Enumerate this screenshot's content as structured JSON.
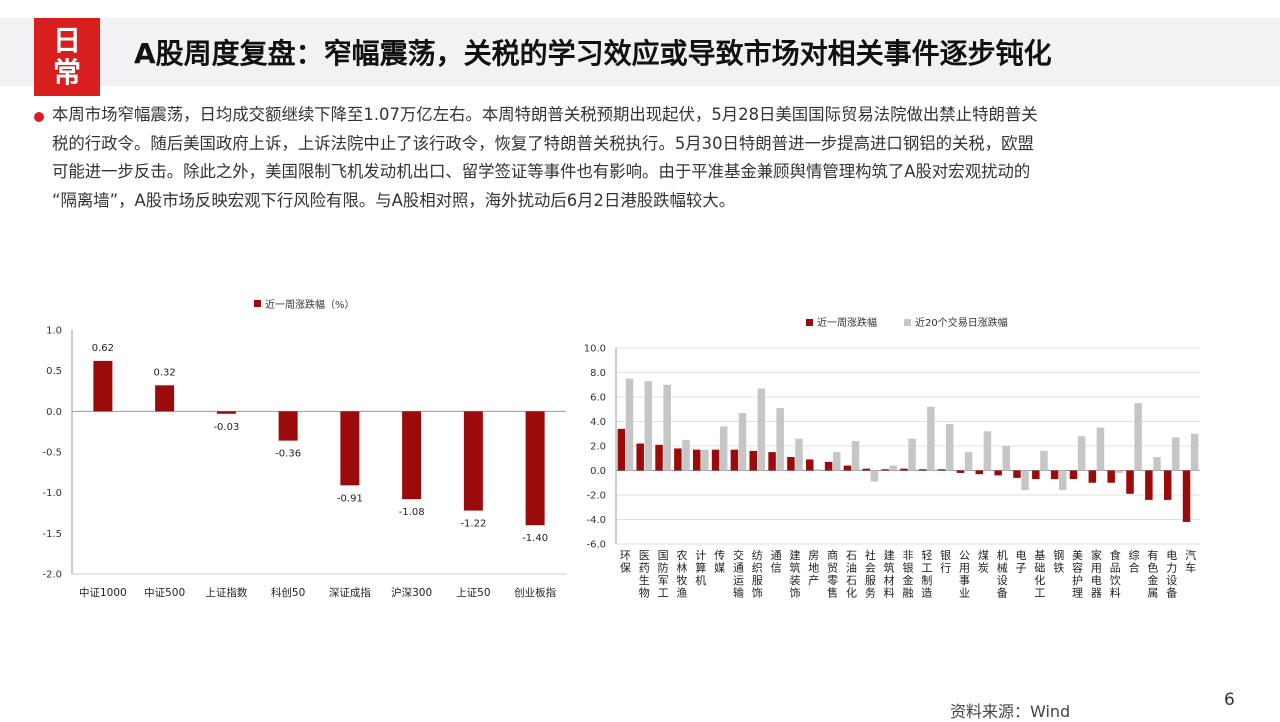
{
  "header": {
    "badge_chars": [
      "日",
      "常"
    ],
    "title": "A股周度复盘：窄幅震荡，关税的学习效应或导致市场对相关事件逐步钝化"
  },
  "summary_lines": [
    "本周市场窄幅震荡，日均成交额继续下降至1.07万亿左右。本周特朗普关税预期出现起伏，5月28日美国国际贸易法院做出禁止特朗普关",
    "税的行政令。随后美国政府上诉，上诉法院中止了该行政令，恢复了特朗普关税执行。5月30日特朗普进一步提高进口钢铝的关税，欧盟",
    "可能进一步反击。除此之外，美国限制飞机发动机出口、留学签证等事件也有影响。由于平准基金兼顾舆情管理构筑了A股对宏观扰动的",
    "“隔离墙”，A股市场反映宏观下行风险有限。与A股相对照，海外扰动后6月2日港股跌幅较大。"
  ],
  "footer": {
    "source": "资料来源：Wind",
    "page_number": "6"
  },
  "colors": {
    "accent_red": "#d91e1e",
    "bar_dark_red": "#9b0b0b",
    "bar_gray": "#c6c6c6"
  },
  "chart_data": [
    {
      "type": "bar",
      "title": "",
      "legend": [
        "近一周涨跌幅（%）"
      ],
      "legend_position": "top",
      "categories": [
        "中证1000",
        "中证500",
        "上证指数",
        "科创50",
        "深证成指",
        "沪深300",
        "上证50",
        "创业板指"
      ],
      "series": [
        {
          "name": "近一周涨跌幅（%）",
          "values": [
            0.62,
            0.32,
            -0.03,
            -0.36,
            -0.91,
            -1.08,
            -1.22,
            -1.4
          ]
        }
      ],
      "data_labels": [
        "0.62",
        "0.32",
        "-0.03",
        "-0.36",
        "-0.91",
        "-1.08",
        "-1.22",
        "-1.40"
      ],
      "ylim": [
        -2.0,
        1.0
      ],
      "yticks": [
        "1.0",
        "0.5",
        "0.0",
        "-0.5",
        "-1.0",
        "-1.5",
        "-2.0"
      ],
      "grid": false
    },
    {
      "type": "bar",
      "title": "",
      "legend": [
        "近一周涨跌幅",
        "近20个交易日涨跌幅"
      ],
      "legend_position": "top",
      "categories": [
        "环保",
        "医药生物",
        "国防军工",
        "农林牧渔",
        "计算机",
        "传媒",
        "交通运输",
        "纺织服饰",
        "通信",
        "建筑装饰",
        "房地产",
        "商贸零售",
        "石油石化",
        "社会服务",
        "建筑材料",
        "非银金融",
        "轻工制造",
        "银行",
        "公用事业",
        "煤炭",
        "机械设备",
        "电子",
        "基础化工",
        "钢铁",
        "美容护理",
        "家用电器",
        "食品饮料",
        "综合",
        "有色金属",
        "电力设备",
        "汽车"
      ],
      "series": [
        {
          "name": "近一周涨跌幅",
          "values": [
            3.4,
            2.2,
            2.1,
            1.8,
            1.7,
            1.7,
            1.7,
            1.6,
            1.5,
            1.1,
            0.9,
            0.7,
            0.4,
            0.15,
            0.1,
            0.15,
            0.1,
            0.1,
            -0.2,
            -0.3,
            -0.4,
            -0.6,
            -0.7,
            -0.7,
            -0.7,
            -1.0,
            -1.0,
            -1.9,
            -2.4,
            -2.4,
            -4.2
          ]
        },
        {
          "name": "近20个交易日涨跌幅",
          "values": [
            7.5,
            7.3,
            7.0,
            2.5,
            1.7,
            3.6,
            4.7,
            6.7,
            5.1,
            2.6,
            0.1,
            1.5,
            2.4,
            -0.9,
            0.4,
            2.6,
            5.2,
            3.8,
            1.5,
            3.2,
            2.0,
            -1.6,
            1.6,
            -1.6,
            2.8,
            3.5,
            -0.2,
            5.5,
            1.1,
            2.7,
            3.0
          ]
        }
      ],
      "ylim": [
        -6.0,
        10.0
      ],
      "yticks": [
        "10.0",
        "8.0",
        "6.0",
        "4.0",
        "2.0",
        "0.0",
        "-2.0",
        "-4.0",
        "-6.0"
      ],
      "grid": true
    }
  ]
}
